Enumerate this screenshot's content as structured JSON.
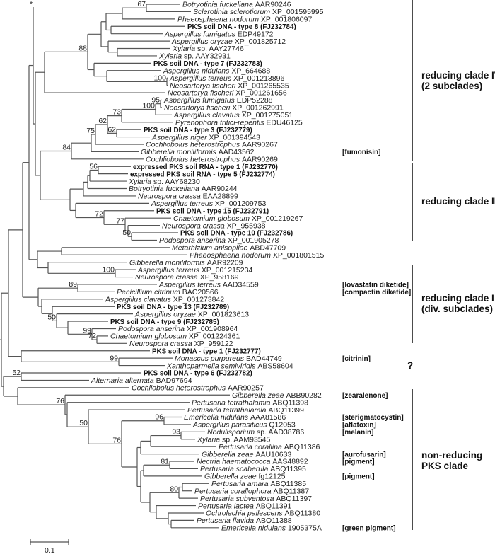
{
  "root_marker": "*",
  "leaves": [
    {
      "genus": "Botryotinia fuckeliana",
      "acc": "AAR90246"
    },
    {
      "genus": "Sclerotinia sclerotiorum",
      "acc": "XP_001595995"
    },
    {
      "genus": "Phaeosphaeria nodorum",
      "acc": "XP_001806097"
    },
    {
      "label": "PKS soil DNA - type 8 (FJ232784)",
      "bold": true
    },
    {
      "genus": "Aspergillus fumigatus",
      "acc": "EDP49172"
    },
    {
      "genus": "Aspergillus oryzae",
      "acc": "XP_001825712"
    },
    {
      "genus": "Xylaria",
      "acc": "sp. AAY27746"
    },
    {
      "genus": "Xylaria",
      "acc": "sp. AAY32931"
    },
    {
      "label": "PKS soil DNA - type 7 (FJ232783)",
      "bold": true
    },
    {
      "genus": "Aspergillus nidulans",
      "acc": "XP_664688"
    },
    {
      "genus": "Aspergillus terreus",
      "acc": "XP_001213896"
    },
    {
      "genus": "Neosartorya fischeri",
      "acc": "XP_001265535"
    },
    {
      "genus": "Neosartorya fischeri",
      "acc": "XP_001261656"
    },
    {
      "genus": "Aspergillus fumigatus",
      "acc": "EDP52288"
    },
    {
      "genus": "Neosartorya fischeri",
      "acc": "XP_001262991"
    },
    {
      "genus": "Aspergillus clavatus",
      "acc": "XP_001275051"
    },
    {
      "genus": "Pyrenophora tritici-repentis",
      "acc": "EDU46125"
    },
    {
      "label": "PKS soil DNA - type 3 (FJ232779)",
      "bold": true
    },
    {
      "genus": "Aspergillus niger",
      "acc": "XP_001394543"
    },
    {
      "genus": "Cochliobolus heterostrophus",
      "acc": "AAR90267"
    },
    {
      "genus": "Gibberella moniliformis",
      "acc": "AAD43562",
      "compound": "[fumonisin]"
    },
    {
      "genus": "Cochliobolus heterostrophus",
      "acc": "AAR90269"
    },
    {
      "label": "expressed PKS soil RNA - type 1 (FJ232770)",
      "bold": true
    },
    {
      "label": "expressed PKS soil RNA - type 5 (FJ232774)",
      "bold": true
    },
    {
      "genus": "Xylaria",
      "acc": "sp. AAY68230"
    },
    {
      "genus": "Botryotinia fuckeliana",
      "acc": "AAR90244"
    },
    {
      "genus": "Neurospora crassa",
      "acc": "EAA28899"
    },
    {
      "genus": "Aspergillus terreus",
      "acc": "XP_001209753"
    },
    {
      "label": "PKS soil DNA - type 15 (FJ232791)",
      "bold": true
    },
    {
      "genus": "Chaetomium globosum",
      "acc": "XP_001219267"
    },
    {
      "genus": "Neurospora crassa",
      "acc": "XP_955938"
    },
    {
      "label": "PKS soil DNA - type 10 (FJ232786)",
      "bold": true
    },
    {
      "genus": "Podospora anserina",
      "acc": "XP_001905278"
    },
    {
      "genus": "Metarhizium anisopliae",
      "acc": "ABD47709"
    },
    {
      "genus": "Phaeosphaeria nodorum",
      "acc": "XP_001801515"
    },
    {
      "genus": "Gibberella moniliformis",
      "acc": "AAR92209"
    },
    {
      "genus": "Aspergillus terreus",
      "acc": "XP_001215234"
    },
    {
      "genus": "Neurospora crassa",
      "acc": "XP_958169"
    },
    {
      "genus": "Aspergillus terreus",
      "acc": "AAD34559",
      "compound": "[lovastatin diketide]"
    },
    {
      "genus": "Penicillium citrinum",
      "acc": "BAC20566",
      "compound": "[compactin diketide]"
    },
    {
      "genus": "Aspergillus clavatus",
      "acc": "XP_001273842"
    },
    {
      "label": "PKS soil DNA - type 13 (FJ232789)",
      "bold": true
    },
    {
      "genus": "Aspergillus oryzae",
      "acc": "XP_001823613"
    },
    {
      "label": "PKS soil DNA - type 9 (FJ232785)",
      "bold": true
    },
    {
      "genus": "Podospora anserina",
      "acc": "XP_001908964"
    },
    {
      "genus": "Chaetomium globosum",
      "acc": "XP_001224361"
    },
    {
      "genus": "Neurospora crassa",
      "acc": "XP_959122"
    },
    {
      "label": "PKS soil DNA - type 1 (FJ232777)",
      "bold": true
    },
    {
      "genus": "Monascus purpureus",
      "acc": "BAD44749",
      "compound": "[citrinin]"
    },
    {
      "genus": "Xanthoparmelia semiviridis",
      "acc": "ABS58604"
    },
    {
      "label": "PKS soil DNA - type 6 (FJ232782)",
      "bold": true
    },
    {
      "genus": "Alternaria alternata",
      "acc": "BAD97694"
    },
    {
      "genus": "Cochliobolus heterostrophus",
      "acc": "AAR90257"
    },
    {
      "genus": "Gibberella zeae",
      "acc": "ABB90282",
      "compound": "[zearalenone]"
    },
    {
      "genus": "Pertusaria tetrathalamia",
      "acc": "ABQ11398"
    },
    {
      "genus": "Pertusaria tetrathalamia",
      "acc": "ABQ11399"
    },
    {
      "genus": "Emericella nidulans",
      "acc": "AAA81586",
      "compound": "[sterigmatocystin]"
    },
    {
      "genus": "Aspergillus parasiticus",
      "acc": "Q12053",
      "compound": "[aflatoxin]"
    },
    {
      "genus": "Nodulisporium",
      "acc": "sp. AAD38786",
      "compound": "[melanin]"
    },
    {
      "genus": "Xylaria",
      "acc": "sp. AAM93545"
    },
    {
      "genus": "Pertusaria corallina",
      "acc": "ABQ11386"
    },
    {
      "genus": "Gibberella zeae",
      "acc": "AAU10633",
      "compound": "[aurofusarin]"
    },
    {
      "genus": "Nectria haematococca",
      "acc": "AAS48892",
      "compound": "[pigment]"
    },
    {
      "genus": "Pertusaria scaberula",
      "acc": "ABQ11395"
    },
    {
      "genus": "Gibberella zeae",
      "acc": "fg12125",
      "compound": "[pigment]"
    },
    {
      "genus": "Pertusaria amara",
      "acc": "ABQ11385"
    },
    {
      "genus": "Pertusaria corallophora",
      "acc": "ABQ11387"
    },
    {
      "genus": "Pertusaria subventosa",
      "acc": "ABQ11397"
    },
    {
      "genus": "Pertusaria lactea",
      "acc": "ABQ11391"
    },
    {
      "genus": "Ochrolechia pallescens",
      "acc": "ABQ11380"
    },
    {
      "genus": "Pertusaria flavida",
      "acc": "ABQ11388"
    },
    {
      "genus": "Emericella nidulans",
      "acc": "1905375A",
      "compound": "[green pigment]"
    }
  ],
  "bootstrap_values": [
    67,
    88,
    100,
    95,
    100,
    73,
    62,
    62,
    75,
    84,
    56,
    72,
    77,
    50,
    100,
    89,
    50,
    99,
    72,
    99,
    52,
    76,
    50,
    76,
    96,
    93,
    81,
    80
  ],
  "clades": [
    {
      "lines": [
        "reducing clade IV",
        "(2 subclades)"
      ]
    },
    {
      "lines": [
        "reducing clade III"
      ]
    },
    {
      "lines": [
        "reducing clade I",
        "(div. subclades)"
      ]
    },
    {
      "lines": [
        "?"
      ]
    },
    {
      "lines": [
        "non-reducing",
        "PKS clade"
      ]
    }
  ],
  "scale_bar": {
    "label": "0.1",
    "value": 0.1
  }
}
